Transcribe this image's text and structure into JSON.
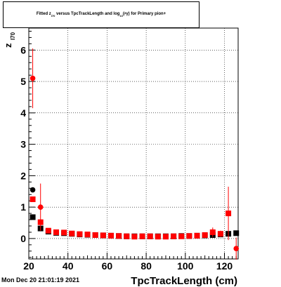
{
  "chart_data": {
    "type": "scatter",
    "title": {
      "pre": "Fitted  z",
      "sub1": "I70",
      "mid": "  versus TpcTrackLength and log",
      "sub2": "10",
      "mid2": "(",
      "sup": "β",
      "post": "γ) for Primary pion+"
    },
    "xlabel": "TpcTrackLength (cm)",
    "ylabel": "z",
    "ylabel_sub": "I70",
    "xlim": [
      20,
      127
    ],
    "ylim": [
      -0.65,
      6.7
    ],
    "xticks": [
      20,
      40,
      60,
      80,
      100,
      120
    ],
    "yticks": [
      0,
      1,
      2,
      3,
      4,
      5,
      6
    ],
    "grid": true,
    "series": [
      {
        "color": "#000000",
        "marker": "square",
        "points": [
          {
            "x": 22,
            "y": 0.68,
            "err": 0.05
          },
          {
            "x": 26,
            "y": 0.32,
            "err": 0.04
          },
          {
            "x": 30,
            "y": 0.22,
            "err": 0.03
          },
          {
            "x": 34,
            "y": 0.18,
            "err": 0.02
          },
          {
            "x": 38,
            "y": 0.17,
            "err": 0.02
          },
          {
            "x": 42,
            "y": 0.15,
            "err": 0.02
          },
          {
            "x": 46,
            "y": 0.13,
            "err": 0.02
          },
          {
            "x": 50,
            "y": 0.12,
            "err": 0.02
          },
          {
            "x": 54,
            "y": 0.11,
            "err": 0.02
          },
          {
            "x": 58,
            "y": 0.1,
            "err": 0.02
          },
          {
            "x": 62,
            "y": 0.09,
            "err": 0.02
          },
          {
            "x": 66,
            "y": 0.08,
            "err": 0.02
          },
          {
            "x": 70,
            "y": 0.07,
            "err": 0.02
          },
          {
            "x": 74,
            "y": 0.07,
            "err": 0.02
          },
          {
            "x": 78,
            "y": 0.07,
            "err": 0.02
          },
          {
            "x": 82,
            "y": 0.07,
            "err": 0.02
          },
          {
            "x": 86,
            "y": 0.07,
            "err": 0.02
          },
          {
            "x": 90,
            "y": 0.07,
            "err": 0.02
          },
          {
            "x": 94,
            "y": 0.07,
            "err": 0.02
          },
          {
            "x": 98,
            "y": 0.08,
            "err": 0.02
          },
          {
            "x": 102,
            "y": 0.08,
            "err": 0.02
          },
          {
            "x": 106,
            "y": 0.09,
            "err": 0.02
          },
          {
            "x": 110,
            "y": 0.1,
            "err": 0.02
          },
          {
            "x": 114,
            "y": 0.11,
            "err": 0.03
          },
          {
            "x": 118,
            "y": 0.13,
            "err": 0.03
          },
          {
            "x": 122,
            "y": 0.15,
            "err": 0.04
          },
          {
            "x": 126,
            "y": 0.17,
            "err": 0.05
          }
        ]
      },
      {
        "color": "#ff0000",
        "marker": "square",
        "points": [
          {
            "x": 22,
            "y": 1.25,
            "err": 0.08
          },
          {
            "x": 26,
            "y": 0.52,
            "err": 0.06
          },
          {
            "x": 30,
            "y": 0.25,
            "err": 0.03
          },
          {
            "x": 34,
            "y": 0.2,
            "err": 0.03
          },
          {
            "x": 38,
            "y": 0.19,
            "err": 0.02
          },
          {
            "x": 42,
            "y": 0.16,
            "err": 0.02
          },
          {
            "x": 46,
            "y": 0.14,
            "err": 0.02
          },
          {
            "x": 50,
            "y": 0.13,
            "err": 0.02
          },
          {
            "x": 54,
            "y": 0.11,
            "err": 0.02
          },
          {
            "x": 58,
            "y": 0.1,
            "err": 0.02
          },
          {
            "x": 62,
            "y": 0.09,
            "err": 0.02
          },
          {
            "x": 66,
            "y": 0.08,
            "err": 0.02
          },
          {
            "x": 70,
            "y": 0.07,
            "err": 0.02
          },
          {
            "x": 74,
            "y": 0.06,
            "err": 0.02
          },
          {
            "x": 78,
            "y": 0.07,
            "err": 0.02
          },
          {
            "x": 82,
            "y": 0.07,
            "err": 0.02
          },
          {
            "x": 86,
            "y": 0.06,
            "err": 0.02
          },
          {
            "x": 90,
            "y": 0.06,
            "err": 0.02
          },
          {
            "x": 94,
            "y": 0.07,
            "err": 0.02
          },
          {
            "x": 98,
            "y": 0.07,
            "err": 0.02
          },
          {
            "x": 102,
            "y": 0.08,
            "err": 0.02
          },
          {
            "x": 106,
            "y": 0.09,
            "err": 0.03
          },
          {
            "x": 110,
            "y": 0.11,
            "err": 0.03
          },
          {
            "x": 114,
            "y": 0.2,
            "err": 0.15
          },
          {
            "x": 118,
            "y": 0.15,
            "err": 0.1
          },
          {
            "x": 122,
            "y": 0.8,
            "err": 0.85
          }
        ]
      },
      {
        "color": "#ff0000",
        "marker": "circle",
        "points": [
          {
            "x": 22,
            "y": 5.1,
            "err": 0.95
          },
          {
            "x": 26,
            "y": 1.0,
            "err": 0.75
          },
          {
            "x": 126,
            "y": -0.32,
            "err": 0.35
          }
        ]
      },
      {
        "color": "#000000",
        "marker": "circle",
        "points": [
          {
            "x": 22,
            "y": 1.55,
            "err": 0.05
          }
        ]
      }
    ]
  },
  "footer": {
    "timestamp": "Mon Dec 20 21:01:19 2021"
  }
}
